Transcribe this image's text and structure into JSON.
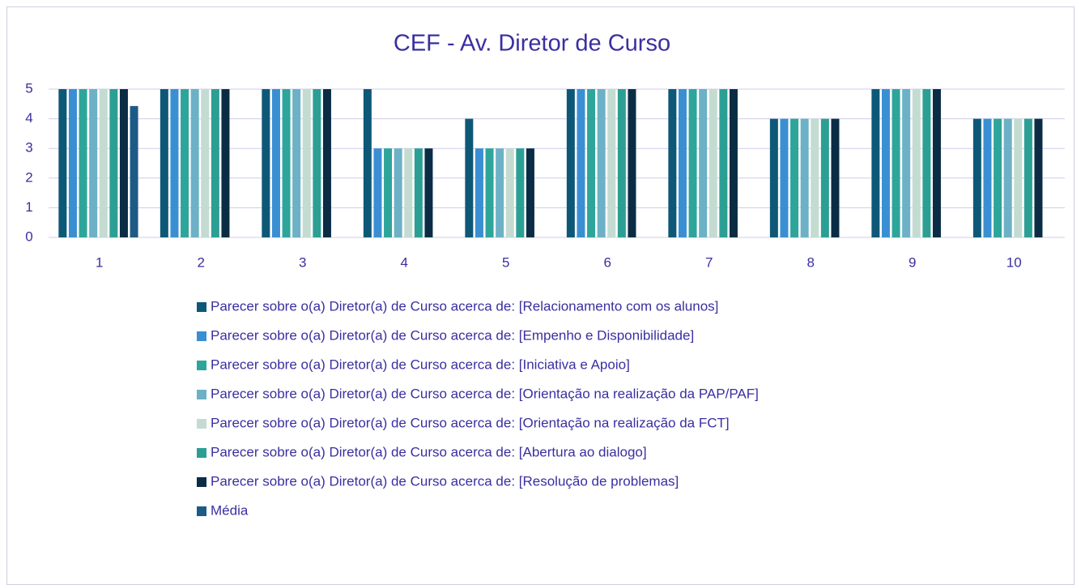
{
  "chart_data": {
    "type": "bar",
    "title": "CEF - Av. Diretor de Curso",
    "categories": [
      "1",
      "2",
      "3",
      "4",
      "5",
      "6",
      "7",
      "8",
      "9",
      "10"
    ],
    "series": [
      {
        "name": "Parecer sobre o(a) Diretor(a) de Curso acerca de: [Relacionamento com os alunos]",
        "color": "#0e5877",
        "values": [
          5,
          5,
          5,
          5,
          4,
          5,
          5,
          4,
          5,
          4
        ]
      },
      {
        "name": "Parecer sobre o(a) Diretor(a) de Curso acerca de: [Empenho e Disponibilidade]",
        "color": "#3a8fd3",
        "values": [
          5,
          5,
          5,
          3,
          3,
          5,
          5,
          4,
          5,
          4
        ]
      },
      {
        "name": "Parecer sobre o(a) Diretor(a) de Curso acerca de: [Iniciativa e Apoio]",
        "color": "#2ea59a",
        "values": [
          5,
          5,
          5,
          3,
          3,
          5,
          5,
          4,
          5,
          4
        ]
      },
      {
        "name": "Parecer sobre o(a) Diretor(a) de Curso acerca de: [Orientação na realização da PAP/PAF]",
        "color": "#6cb1c6",
        "values": [
          5,
          5,
          5,
          3,
          3,
          5,
          5,
          4,
          5,
          4
        ]
      },
      {
        "name": "Parecer sobre o(a) Diretor(a) de Curso acerca de: [Orientação na realização da FCT]",
        "color": "#c4dbd1",
        "values": [
          5,
          5,
          5,
          3,
          3,
          5,
          5,
          4,
          5,
          4
        ]
      },
      {
        "name": "Parecer sobre o(a) Diretor(a) de Curso acerca de: [Abertura ao dialogo]",
        "color": "#2c9f94",
        "values": [
          5,
          5,
          5,
          3,
          3,
          5,
          5,
          4,
          5,
          4
        ]
      },
      {
        "name": "Parecer sobre o(a) Diretor(a) de Curso acerca de: [Resolução de problemas]",
        "color": "#0a2d45",
        "values": [
          5,
          5,
          5,
          3,
          3,
          5,
          5,
          4,
          5,
          4
        ]
      },
      {
        "name": "Média",
        "color": "#1e5a86",
        "values": [
          4.43,
          null,
          null,
          null,
          null,
          null,
          null,
          null,
          null,
          null
        ]
      }
    ],
    "ylim": [
      0,
      5
    ],
    "yticks": [
      0,
      1,
      2,
      3,
      4,
      5
    ],
    "grid": true
  }
}
